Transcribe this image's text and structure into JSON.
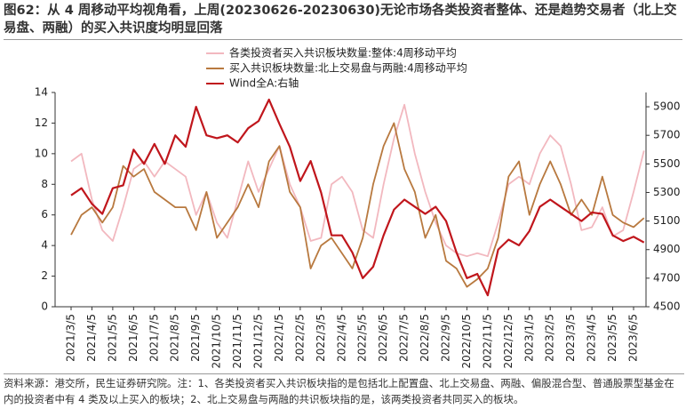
{
  "chart_data": {
    "type": "line",
    "title": "图62：从 4 周移动平均视角看，上周(20230626-20230630)无论市场各类投资者整体、还是趋势交易者（北上交易盘、两融）的买入共识度均明显回落",
    "note": "资料来源：港交所，民生证券研究院。注：1、各类投资者买入共识板块指的是包括北上配置盘、北上交易盘、两融、偏股混合型、普通股票型基金在内的投资者中有 4 类及以上买入的板块；2、北上交易盘与两融的共识板块指的是，该两类投资者共同买入的板块。",
    "categories": [
      "2021/3/5",
      null,
      "2021/4/5",
      null,
      "2021/5/5",
      null,
      "2021/6/5",
      null,
      "2021/7/5",
      null,
      "2021/8/5",
      null,
      "2021/9/5",
      null,
      "2021/10/5",
      null,
      "2021/11/5",
      null,
      "2021/12/5",
      null,
      "2022/1/5",
      null,
      "2022/2/5",
      null,
      "2022/3/5",
      null,
      "2022/4/5",
      null,
      "2022/5/5",
      null,
      "2022/6/5",
      null,
      "2022/7/5",
      null,
      "2022/8/5",
      null,
      "2022/9/5",
      null,
      "2022/10/5",
      null,
      "2022/11/5",
      null,
      "2022/12/5",
      null,
      "2023/1/5",
      null,
      "2023/2/5",
      null,
      "2023/3/5",
      null,
      "2023/4/5",
      null,
      "2023/5/5",
      null,
      "2023/6/5",
      null
    ],
    "series": [
      {
        "name": "各类投资者买入共识板块数量:整体:4周移动平均",
        "color": "#f2b8bf",
        "values": [
          9.5,
          10,
          7,
          5,
          4.3,
          6.5,
          9,
          9.5,
          8.5,
          9.5,
          9,
          8.5,
          6,
          7.5,
          5.5,
          4.5,
          7,
          9.5,
          7.5,
          9,
          10.5,
          8,
          6.5,
          4.3,
          4.5,
          8,
          8.5,
          7.5,
          5,
          4.5,
          8,
          11,
          13.2,
          10,
          7.5,
          5.5,
          4,
          3.5,
          3.3,
          3.5,
          3.3,
          5.5,
          8,
          8.5,
          8,
          10,
          11.2,
          10.5,
          8,
          5,
          5.2,
          6.5,
          4.6,
          5,
          7.5,
          10.2
        ]
      },
      {
        "name": "买入共识板块数量:北上交易盘与两融:4周移动平均",
        "color": "#b8793f",
        "values": [
          4.7,
          6,
          6.5,
          5.5,
          6.5,
          9.2,
          8.5,
          9,
          7.5,
          7,
          6.5,
          6.5,
          5,
          7.5,
          4.5,
          5.5,
          6.5,
          8,
          6.5,
          9.5,
          10.5,
          7.5,
          6.5,
          2.5,
          4,
          4.5,
          3.5,
          2.5,
          4.5,
          8,
          10.5,
          12,
          9,
          7.5,
          4.5,
          6,
          3,
          2.5,
          1.3,
          1.8,
          2.5,
          4.5,
          8.5,
          9.5,
          6,
          8,
          9.5,
          8,
          6,
          7,
          6,
          8.5,
          6,
          5.5,
          5.2,
          5.8
        ]
      },
      {
        "name": "Wind全A:右轴",
        "color": "#c0161c",
        "axis": "y2",
        "values": [
          5280,
          5330,
          5220,
          5150,
          5330,
          5350,
          5600,
          5500,
          5640,
          5500,
          5700,
          5620,
          5900,
          5700,
          5680,
          5700,
          5650,
          5750,
          5800,
          5950,
          5780,
          5620,
          5380,
          5520,
          5300,
          5000,
          5000,
          4880,
          4700,
          4780,
          5000,
          5180,
          5250,
          5200,
          5150,
          5200,
          5100,
          4880,
          4700,
          4730,
          4580,
          4900,
          4970,
          4930,
          5030,
          5200,
          5250,
          5200,
          5150,
          5100,
          5160,
          5150,
          5000,
          4960,
          4990,
          4950
        ]
      }
    ],
    "ylim": [
      0,
      14
    ],
    "yticks": [
      0,
      2,
      4,
      6,
      8,
      10,
      12,
      14
    ],
    "y2lim": [
      4500,
      6000
    ],
    "y2ticks": [
      4500,
      4700,
      4900,
      5100,
      5300,
      5500,
      5700,
      5900
    ]
  }
}
